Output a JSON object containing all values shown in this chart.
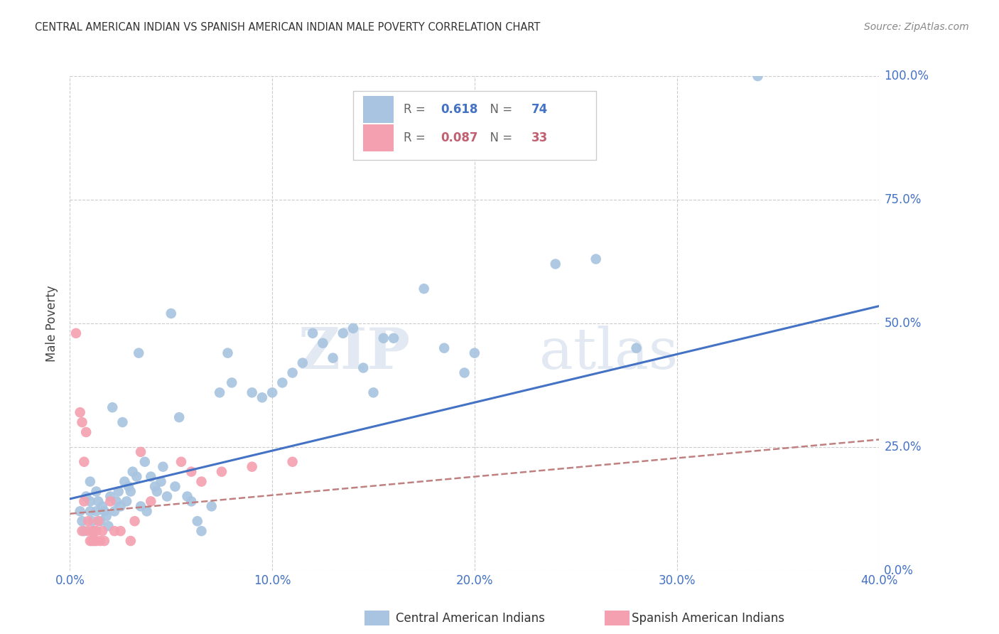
{
  "title": "CENTRAL AMERICAN INDIAN VS SPANISH AMERICAN INDIAN MALE POVERTY CORRELATION CHART",
  "source": "Source: ZipAtlas.com",
  "xlabel_vals": [
    0.0,
    0.1,
    0.2,
    0.3,
    0.4
  ],
  "ylabel_vals": [
    0.0,
    0.25,
    0.5,
    0.75,
    1.0
  ],
  "ylabel_label": "Male Poverty",
  "legend_label1": "Central American Indians",
  "legend_label2": "Spanish American Indians",
  "R1": "0.618",
  "N1": "74",
  "R2": "0.087",
  "N2": "33",
  "watermark_zip": "ZIP",
  "watermark_atlas": "atlas",
  "blue_color": "#a8c4e0",
  "pink_color": "#f4a0b0",
  "blue_line_color": "#4472c4",
  "pink_line_color": "#c08080",
  "tick_color": "#4472c4",
  "blue_scatter": [
    [
      0.005,
      0.12
    ],
    [
      0.006,
      0.1
    ],
    [
      0.007,
      0.08
    ],
    [
      0.008,
      0.15
    ],
    [
      0.01,
      0.14
    ],
    [
      0.01,
      0.12
    ],
    [
      0.01,
      0.18
    ],
    [
      0.011,
      0.1
    ],
    [
      0.012,
      0.08
    ],
    [
      0.013,
      0.16
    ],
    [
      0.013,
      0.12
    ],
    [
      0.014,
      0.14
    ],
    [
      0.015,
      0.1
    ],
    [
      0.016,
      0.13
    ],
    [
      0.017,
      0.12
    ],
    [
      0.018,
      0.11
    ],
    [
      0.019,
      0.09
    ],
    [
      0.02,
      0.15
    ],
    [
      0.021,
      0.33
    ],
    [
      0.022,
      0.12
    ],
    [
      0.023,
      0.14
    ],
    [
      0.024,
      0.16
    ],
    [
      0.025,
      0.13
    ],
    [
      0.026,
      0.3
    ],
    [
      0.027,
      0.18
    ],
    [
      0.028,
      0.14
    ],
    [
      0.029,
      0.17
    ],
    [
      0.03,
      0.16
    ],
    [
      0.031,
      0.2
    ],
    [
      0.033,
      0.19
    ],
    [
      0.034,
      0.44
    ],
    [
      0.035,
      0.13
    ],
    [
      0.037,
      0.22
    ],
    [
      0.038,
      0.12
    ],
    [
      0.04,
      0.19
    ],
    [
      0.042,
      0.17
    ],
    [
      0.043,
      0.16
    ],
    [
      0.045,
      0.18
    ],
    [
      0.046,
      0.21
    ],
    [
      0.048,
      0.15
    ],
    [
      0.05,
      0.52
    ],
    [
      0.052,
      0.17
    ],
    [
      0.054,
      0.31
    ],
    [
      0.058,
      0.15
    ],
    [
      0.06,
      0.14
    ],
    [
      0.063,
      0.1
    ],
    [
      0.065,
      0.08
    ],
    [
      0.07,
      0.13
    ],
    [
      0.074,
      0.36
    ],
    [
      0.078,
      0.44
    ],
    [
      0.08,
      0.38
    ],
    [
      0.09,
      0.36
    ],
    [
      0.095,
      0.35
    ],
    [
      0.1,
      0.36
    ],
    [
      0.105,
      0.38
    ],
    [
      0.11,
      0.4
    ],
    [
      0.115,
      0.42
    ],
    [
      0.12,
      0.48
    ],
    [
      0.125,
      0.46
    ],
    [
      0.13,
      0.43
    ],
    [
      0.135,
      0.48
    ],
    [
      0.14,
      0.49
    ],
    [
      0.145,
      0.41
    ],
    [
      0.15,
      0.36
    ],
    [
      0.155,
      0.47
    ],
    [
      0.16,
      0.47
    ],
    [
      0.175,
      0.57
    ],
    [
      0.185,
      0.45
    ],
    [
      0.195,
      0.4
    ],
    [
      0.2,
      0.44
    ],
    [
      0.24,
      0.62
    ],
    [
      0.26,
      0.63
    ],
    [
      0.28,
      0.45
    ],
    [
      0.34,
      1.0
    ]
  ],
  "pink_scatter": [
    [
      0.003,
      0.48
    ],
    [
      0.005,
      0.32
    ],
    [
      0.006,
      0.3
    ],
    [
      0.006,
      0.08
    ],
    [
      0.007,
      0.22
    ],
    [
      0.007,
      0.14
    ],
    [
      0.008,
      0.28
    ],
    [
      0.009,
      0.1
    ],
    [
      0.009,
      0.08
    ],
    [
      0.01,
      0.06
    ],
    [
      0.011,
      0.08
    ],
    [
      0.011,
      0.06
    ],
    [
      0.012,
      0.06
    ],
    [
      0.012,
      0.08
    ],
    [
      0.013,
      0.06
    ],
    [
      0.013,
      0.08
    ],
    [
      0.014,
      0.1
    ],
    [
      0.015,
      0.06
    ],
    [
      0.016,
      0.08
    ],
    [
      0.017,
      0.06
    ],
    [
      0.02,
      0.14
    ],
    [
      0.022,
      0.08
    ],
    [
      0.025,
      0.08
    ],
    [
      0.03,
      0.06
    ],
    [
      0.032,
      0.1
    ],
    [
      0.035,
      0.24
    ],
    [
      0.04,
      0.14
    ],
    [
      0.055,
      0.22
    ],
    [
      0.06,
      0.2
    ],
    [
      0.065,
      0.18
    ],
    [
      0.075,
      0.2
    ],
    [
      0.09,
      0.21
    ],
    [
      0.11,
      0.22
    ]
  ],
  "blue_trendline": [
    [
      0.0,
      0.145
    ],
    [
      0.4,
      0.535
    ]
  ],
  "pink_trendline": [
    [
      0.0,
      0.115
    ],
    [
      0.4,
      0.265
    ]
  ],
  "xlim": [
    0.0,
    0.4
  ],
  "ylim": [
    0.0,
    1.0
  ],
  "background_color": "#ffffff",
  "grid_color": "#cccccc"
}
